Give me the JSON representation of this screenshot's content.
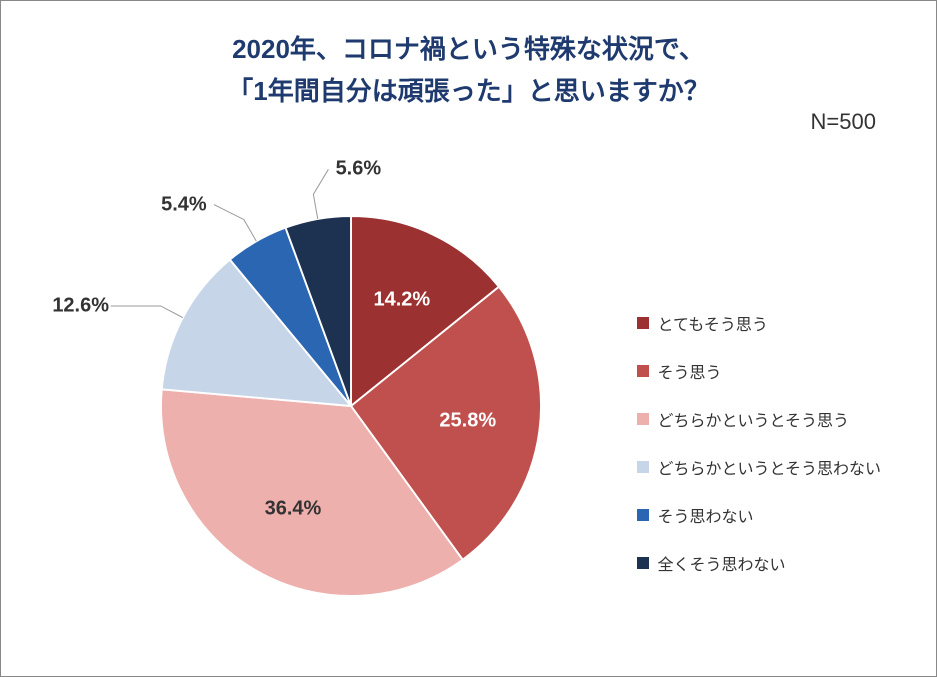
{
  "title_line1": "2020年、コロナ禍という特殊な状況で、",
  "title_line2": "「1年間自分は頑張った」と思いますか？",
  "sample_label": "N=500",
  "chart": {
    "type": "pie",
    "background_color": "#ffffff",
    "title_color": "#1f3a6e",
    "title_fontsize": 26,
    "label_fontsize": 20,
    "legend_fontsize": 16,
    "start_angle_deg": 0,
    "series": [
      {
        "label": "とてもそう思う",
        "value": 14.2,
        "color": "#9c3131",
        "text": "14.2%",
        "label_color": "white"
      },
      {
        "label": "そう思う",
        "value": 25.8,
        "color": "#c0504d",
        "text": "25.8%",
        "label_color": "white"
      },
      {
        "label": "どちらかというとそう思う",
        "value": 36.4,
        "color": "#eeb0ad",
        "text": "36.4%",
        "label_color": "dark"
      },
      {
        "label": "どちらかというとそう思わない",
        "value": 12.6,
        "color": "#c7d5e8",
        "text": "12.6%",
        "label_color": "dark",
        "outside": true
      },
      {
        "label": "そう思わない",
        "value": 5.4,
        "color": "#2a66b1",
        "text": "5.4%",
        "label_color": "dark",
        "outside": true
      },
      {
        "label": "全くそう思わない",
        "value": 5.6,
        "color": "#1d3150",
        "text": "5.6%",
        "label_color": "dark",
        "outside": true
      }
    ]
  }
}
